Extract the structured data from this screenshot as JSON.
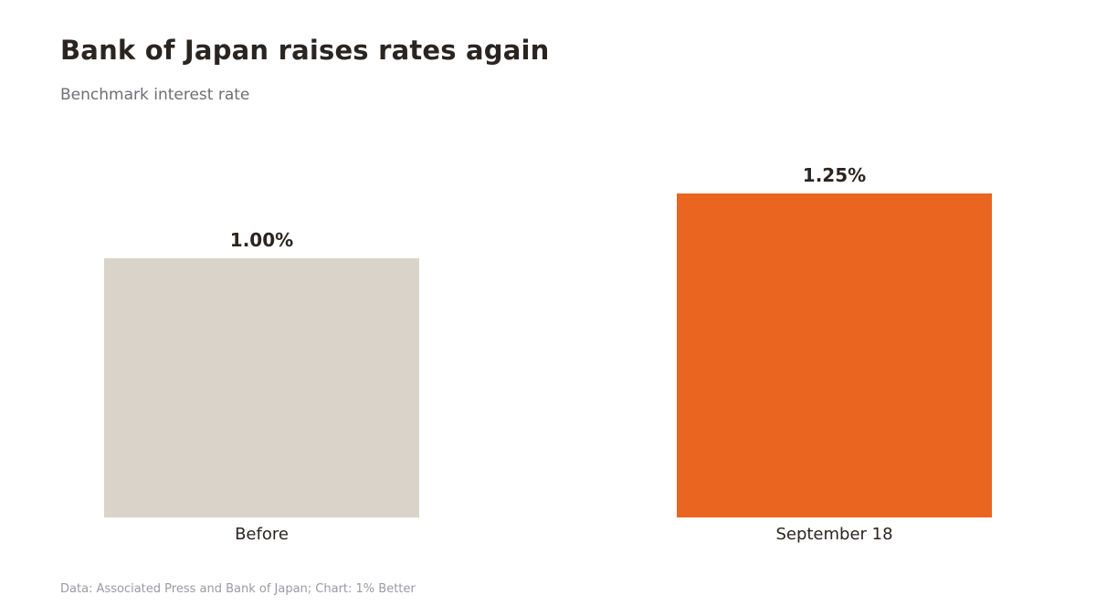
{
  "header": {
    "title": "Bank of Japan raises rates again",
    "subtitle": "Benchmark interest rate"
  },
  "footer": {
    "source": "Data: Associated Press and Bank of Japan; Chart: 1% Better"
  },
  "chart_data": {
    "type": "bar",
    "categories": [
      "Before",
      "September 18"
    ],
    "values": [
      1.0,
      1.25
    ],
    "data_labels": [
      "1.00%",
      "1.25%"
    ],
    "colors": [
      "#d9d3c9",
      "#ea6520"
    ],
    "ylim": [
      0,
      1.25
    ],
    "grid": false,
    "legend": "none"
  }
}
